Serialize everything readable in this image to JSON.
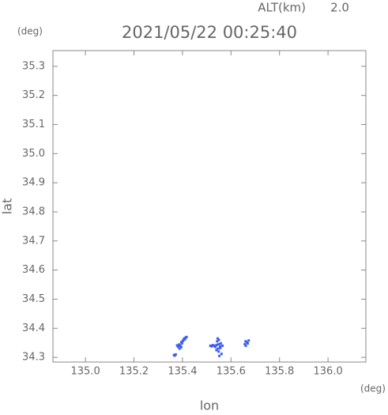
{
  "chart_data": {
    "type": "scatter",
    "title": "2021/05/22 00:25:40",
    "altitude_label": "ALT(km)",
    "altitude_value": "2.0",
    "y_unit": "(deg)",
    "x_unit": "(deg)",
    "xlabel": "lon",
    "ylabel": "lat",
    "xlim": [
      134.866,
      136.156
    ],
    "ylim": [
      34.284,
      35.354
    ],
    "xticks": [
      {
        "value": 135,
        "label": "135.0"
      },
      135.2,
      135.4,
      135.6,
      135.8,
      {
        "value": 136,
        "label": "136.0"
      }
    ],
    "yticks": [
      34.3,
      34.4,
      34.5,
      34.6,
      34.7,
      34.8,
      34.9,
      {
        "value": 35,
        "label": "35.0"
      },
      35.1,
      35.2,
      35.3
    ],
    "color": "#3a5cf0",
    "x": [
      135.365,
      135.368,
      135.372,
      135.378,
      135.382,
      135.386,
      135.391,
      135.395,
      135.398,
      135.401,
      135.404,
      135.407,
      135.41,
      135.413,
      135.417,
      135.388,
      135.395,
      135.515,
      135.52,
      135.525,
      135.53,
      135.535,
      135.54,
      135.543,
      135.546,
      135.549,
      135.552,
      135.555,
      135.558,
      135.561,
      135.565,
      135.545,
      135.55,
      135.556,
      135.54,
      135.548,
      135.657,
      135.661,
      135.665,
      135.669,
      135.673,
      135.66
    ],
    "y": [
      34.308,
      34.306,
      34.31,
      34.341,
      34.336,
      34.344,
      34.34,
      34.352,
      34.348,
      34.356,
      34.36,
      34.365,
      34.362,
      34.368,
      34.37,
      34.33,
      34.335,
      34.34,
      34.338,
      34.342,
      34.34,
      34.336,
      34.342,
      34.355,
      34.33,
      34.32,
      34.305,
      34.338,
      34.348,
      34.312,
      34.34,
      34.365,
      34.36,
      34.332,
      34.325,
      34.345,
      34.345,
      34.34,
      34.352,
      34.348,
      34.358,
      34.355
    ]
  }
}
